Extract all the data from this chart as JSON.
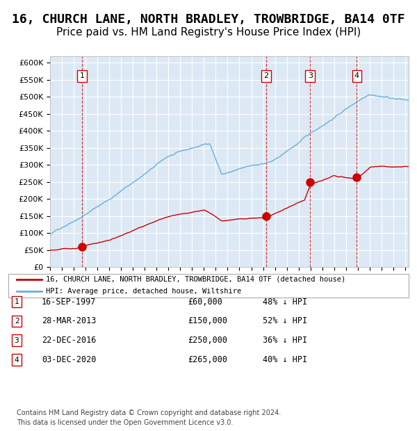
{
  "title": "16, CHURCH LANE, NORTH BRADLEY, TROWBRIDGE, BA14 0TF",
  "subtitle": "Price paid vs. HM Land Registry's House Price Index (HPI)",
  "title_fontsize": 13,
  "subtitle_fontsize": 11,
  "bg_color": "#dce9f5",
  "plot_bg_color": "#dce9f5",
  "fig_bg_color": "#ffffff",
  "hpi_color": "#6baed6",
  "price_color": "#cc0000",
  "sale_marker_color": "#cc0000",
  "dashed_line_color": "#cc0000",
  "sales": [
    {
      "num": 1,
      "date_year": 1997.72,
      "price": 60000,
      "label": "16-SEP-1997",
      "price_label": "£60,000",
      "hpi_pct": "48% ↓ HPI"
    },
    {
      "num": 2,
      "date_year": 2013.24,
      "price": 150000,
      "label": "28-MAR-2013",
      "price_label": "£150,000",
      "hpi_pct": "52% ↓ HPI"
    },
    {
      "num": 3,
      "date_year": 2016.98,
      "price": 250000,
      "label": "22-DEC-2016",
      "price_label": "£250,000",
      "hpi_pct": "36% ↓ HPI"
    },
    {
      "num": 4,
      "date_year": 2020.92,
      "price": 265000,
      "label": "03-DEC-2020",
      "price_label": "£265,000",
      "hpi_pct": "40% ↓ HPI"
    }
  ],
  "ylim": [
    0,
    620000
  ],
  "xlim_start": 1995.0,
  "xlim_end": 2025.3,
  "legend_line1": "16, CHURCH LANE, NORTH BRADLEY, TROWBRIDGE, BA14 0TF (detached house)",
  "legend_line2": "HPI: Average price, detached house, Wiltshire",
  "footer1": "Contains HM Land Registry data © Crown copyright and database right 2024.",
  "footer2": "This data is licensed under the Open Government Licence v3.0."
}
